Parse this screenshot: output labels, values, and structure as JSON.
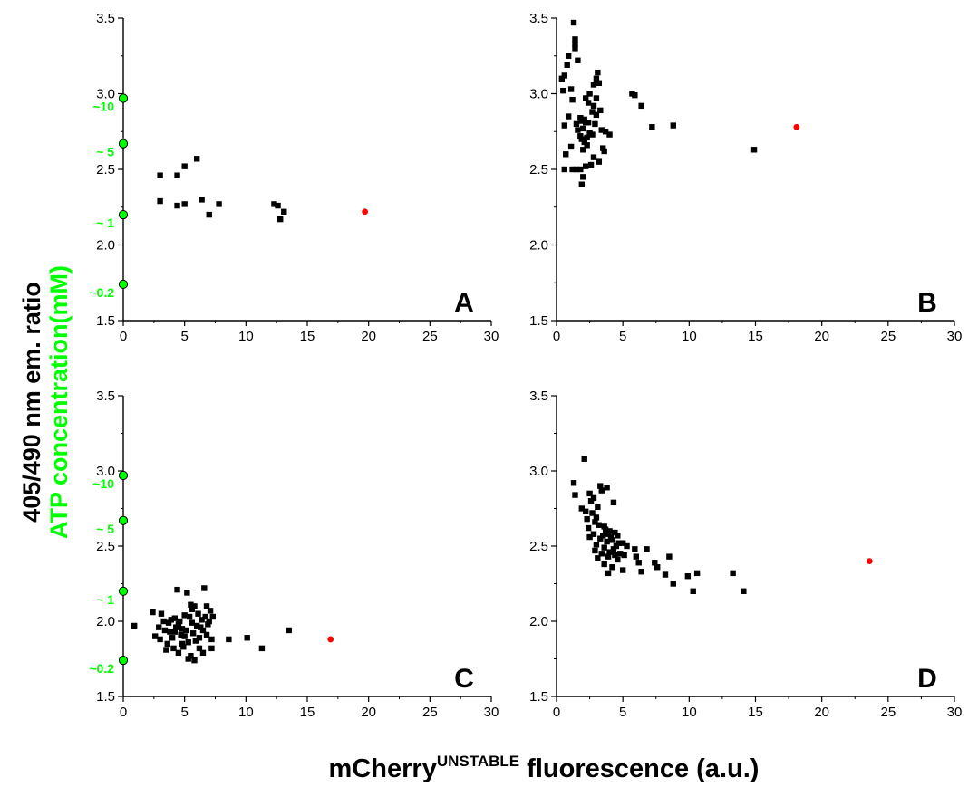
{
  "colors": {
    "points": "#000000",
    "highlight": "#ff0000",
    "atp": "#00ff00",
    "axis": "#000000"
  },
  "y_label_line1": "405/490 nm em. ratio",
  "y_label_line2": "ATP concentration(mM)",
  "x_label_main": "mCherry",
  "x_label_sup": "UNSTABLE",
  "x_label_tail": " fluorescence (a.u.)",
  "chart_data": [
    {
      "panel": "A",
      "type": "scatter",
      "xlim": [
        0,
        30
      ],
      "ylim": [
        1.5,
        3.5
      ],
      "xticks": [
        0,
        5,
        10,
        15,
        20,
        25,
        30
      ],
      "yticks": [
        1.5,
        2.0,
        2.5,
        3.0,
        3.5
      ],
      "atp_markers": [
        {
          "label": "~10",
          "y": 2.97
        },
        {
          "label": "~ 5",
          "y": 2.67
        },
        {
          "label": "~ 1",
          "y": 2.2
        },
        {
          "label": "~0.2",
          "y": 1.74
        }
      ],
      "points": [
        [
          3.0,
          2.46
        ],
        [
          3.0,
          2.29
        ],
        [
          4.4,
          2.46
        ],
        [
          4.4,
          2.26
        ],
        [
          5.0,
          2.52
        ],
        [
          5.0,
          2.27
        ],
        [
          6.0,
          2.57
        ],
        [
          6.4,
          2.3
        ],
        [
          7.0,
          2.2
        ],
        [
          7.8,
          2.27
        ],
        [
          12.3,
          2.27
        ],
        [
          12.6,
          2.26
        ],
        [
          13.1,
          2.22
        ],
        [
          12.8,
          2.17
        ]
      ],
      "highlight": [
        [
          19.7,
          2.22
        ]
      ]
    },
    {
      "panel": "B",
      "type": "scatter",
      "xlim": [
        0,
        30
      ],
      "ylim": [
        1.5,
        3.5
      ],
      "xticks": [
        0,
        5,
        10,
        15,
        20,
        25,
        30
      ],
      "yticks": [
        1.5,
        2.0,
        2.5,
        3.0,
        3.5
      ],
      "atp_markers": [],
      "points": [
        [
          1.3,
          3.47
        ],
        [
          1.4,
          3.36
        ],
        [
          1.4,
          3.33
        ],
        [
          1.4,
          3.3
        ],
        [
          0.9,
          3.25
        ],
        [
          1.6,
          3.22
        ],
        [
          0.8,
          3.19
        ],
        [
          0.6,
          3.12
        ],
        [
          0.4,
          3.1
        ],
        [
          1.1,
          3.03
        ],
        [
          0.5,
          3.02
        ],
        [
          3.1,
          3.14
        ],
        [
          3.0,
          3.1
        ],
        [
          2.8,
          3.06
        ],
        [
          3.2,
          3.07
        ],
        [
          1.2,
          2.96
        ],
        [
          2.5,
          3.0
        ],
        [
          2.2,
          2.97
        ],
        [
          3.0,
          2.97
        ],
        [
          2.4,
          2.94
        ],
        [
          2.8,
          2.92
        ],
        [
          3.3,
          2.89
        ],
        [
          2.7,
          2.88
        ],
        [
          3.0,
          2.86
        ],
        [
          0.9,
          2.85
        ],
        [
          1.8,
          2.84
        ],
        [
          2.1,
          2.83
        ],
        [
          1.9,
          2.82
        ],
        [
          2.2,
          2.81
        ],
        [
          2.4,
          2.81
        ],
        [
          1.5,
          2.8
        ],
        [
          2.9,
          2.8
        ],
        [
          0.6,
          2.79
        ],
        [
          2.0,
          2.77
        ],
        [
          1.6,
          2.76
        ],
        [
          3.4,
          2.76
        ],
        [
          3.7,
          2.75
        ],
        [
          2.5,
          2.74
        ],
        [
          4.0,
          2.73
        ],
        [
          2.7,
          2.73
        ],
        [
          1.8,
          2.72
        ],
        [
          2.3,
          2.71
        ],
        [
          1.9,
          2.7
        ],
        [
          2.1,
          2.68
        ],
        [
          2.3,
          2.66
        ],
        [
          1.1,
          2.65
        ],
        [
          3.5,
          2.64
        ],
        [
          2.0,
          2.63
        ],
        [
          3.6,
          2.62
        ],
        [
          0.7,
          2.6
        ],
        [
          2.8,
          2.58
        ],
        [
          3.2,
          2.55
        ],
        [
          2.6,
          2.53
        ],
        [
          2.2,
          2.52
        ],
        [
          0.6,
          2.5
        ],
        [
          1.2,
          2.5
        ],
        [
          1.5,
          2.5
        ],
        [
          1.8,
          2.5
        ],
        [
          2.0,
          2.45
        ],
        [
          1.9,
          2.4
        ],
        [
          5.7,
          3.0
        ],
        [
          5.9,
          2.99
        ],
        [
          6.4,
          2.92
        ],
        [
          7.2,
          2.78
        ],
        [
          8.8,
          2.79
        ],
        [
          14.9,
          2.63
        ]
      ],
      "highlight": [
        [
          18.1,
          2.78
        ]
      ]
    },
    {
      "panel": "C",
      "type": "scatter",
      "xlim": [
        0,
        30
      ],
      "ylim": [
        1.5,
        3.5
      ],
      "xticks": [
        0,
        5,
        10,
        15,
        20,
        25,
        30
      ],
      "yticks": [
        1.5,
        2.0,
        2.5,
        3.0,
        3.5
      ],
      "atp_markers": [
        {
          "label": "~10",
          "y": 2.97
        },
        {
          "label": "~ 5",
          "y": 2.67
        },
        {
          "label": "~ 1",
          "y": 2.2
        },
        {
          "label": "~0.2",
          "y": 1.74
        }
      ],
      "points": [
        [
          0.9,
          1.97
        ],
        [
          2.4,
          2.06
        ],
        [
          2.6,
          1.9
        ],
        [
          2.9,
          1.96
        ],
        [
          3.1,
          2.05
        ],
        [
          3.3,
          2.0
        ],
        [
          3.4,
          1.94
        ],
        [
          3.6,
          1.85
        ],
        [
          3.7,
          1.99
        ],
        [
          3.8,
          1.93
        ],
        [
          3.9,
          2.01
        ],
        [
          4.0,
          1.89
        ],
        [
          4.1,
          1.82
        ],
        [
          4.2,
          2.02
        ],
        [
          4.3,
          1.96
        ],
        [
          4.4,
          2.21
        ],
        [
          4.5,
          1.98
        ],
        [
          4.6,
          2.0
        ],
        [
          4.7,
          1.91
        ],
        [
          4.8,
          1.95
        ],
        [
          4.9,
          1.83
        ],
        [
          5.0,
          2.04
        ],
        [
          5.1,
          1.94
        ],
        [
          5.2,
          2.19
        ],
        [
          5.3,
          1.86
        ],
        [
          5.4,
          2.03
        ],
        [
          5.5,
          2.11
        ],
        [
          5.6,
          1.99
        ],
        [
          5.7,
          1.92
        ],
        [
          5.8,
          2.1
        ],
        [
          5.9,
          1.87
        ],
        [
          6.0,
          1.97
        ],
        [
          6.1,
          2.05
        ],
        [
          6.2,
          1.89
        ],
        [
          6.3,
          1.96
        ],
        [
          6.4,
          2.01
        ],
        [
          6.5,
          1.94
        ],
        [
          6.6,
          2.22
        ],
        [
          6.7,
          2.03
        ],
        [
          6.8,
          1.91
        ],
        [
          6.9,
          1.98
        ],
        [
          7.0,
          2.0
        ],
        [
          7.1,
          2.07
        ],
        [
          7.2,
          1.88
        ],
        [
          7.3,
          2.03
        ],
        [
          3.5,
          1.81
        ],
        [
          4.5,
          1.79
        ],
        [
          5.5,
          1.77
        ],
        [
          6.5,
          1.79
        ],
        [
          5.3,
          1.75
        ],
        [
          5.8,
          1.74
        ],
        [
          4.8,
          1.85
        ],
        [
          6.2,
          1.82
        ],
        [
          5.0,
          1.9
        ],
        [
          3.0,
          1.88
        ],
        [
          4.2,
          1.93
        ],
        [
          5.6,
          2.08
        ],
        [
          6.8,
          2.1
        ],
        [
          7.2,
          1.82
        ],
        [
          8.6,
          1.88
        ],
        [
          10.1,
          1.89
        ],
        [
          11.3,
          1.82
        ],
        [
          13.5,
          1.94
        ]
      ],
      "highlight": [
        [
          16.9,
          1.88
        ]
      ]
    },
    {
      "panel": "D",
      "type": "scatter",
      "xlim": [
        0,
        30
      ],
      "ylim": [
        1.5,
        3.5
      ],
      "xticks": [
        0,
        5,
        10,
        15,
        20,
        25,
        30
      ],
      "yticks": [
        1.5,
        2.0,
        2.5,
        3.0,
        3.5
      ],
      "atp_markers": [],
      "points": [
        [
          2.1,
          3.08
        ],
        [
          1.3,
          2.92
        ],
        [
          1.4,
          2.84
        ],
        [
          2.5,
          2.85
        ],
        [
          2.8,
          2.82
        ],
        [
          3.3,
          2.9
        ],
        [
          3.4,
          2.87
        ],
        [
          3.8,
          2.89
        ],
        [
          2.6,
          2.8
        ],
        [
          3.1,
          2.76
        ],
        [
          1.9,
          2.75
        ],
        [
          2.2,
          2.73
        ],
        [
          2.7,
          2.72
        ],
        [
          3.0,
          2.69
        ],
        [
          2.3,
          2.68
        ],
        [
          4.3,
          2.79
        ],
        [
          2.9,
          2.66
        ],
        [
          3.2,
          2.64
        ],
        [
          3.6,
          2.63
        ],
        [
          2.4,
          2.62
        ],
        [
          3.7,
          2.61
        ],
        [
          4.0,
          2.6
        ],
        [
          4.4,
          2.59
        ],
        [
          3.9,
          2.58
        ],
        [
          2.8,
          2.58
        ],
        [
          3.5,
          2.57
        ],
        [
          4.1,
          2.56
        ],
        [
          4.6,
          2.57
        ],
        [
          2.5,
          2.56
        ],
        [
          3.3,
          2.55
        ],
        [
          4.2,
          2.54
        ],
        [
          3.8,
          2.53
        ],
        [
          4.7,
          2.52
        ],
        [
          5.0,
          2.52
        ],
        [
          3.0,
          2.51
        ],
        [
          4.5,
          2.5
        ],
        [
          5.3,
          2.5
        ],
        [
          3.6,
          2.49
        ],
        [
          4.3,
          2.48
        ],
        [
          2.9,
          2.47
        ],
        [
          4.0,
          2.46
        ],
        [
          5.9,
          2.48
        ],
        [
          4.8,
          2.45
        ],
        [
          3.4,
          2.45
        ],
        [
          6.8,
          2.48
        ],
        [
          4.4,
          2.44
        ],
        [
          5.1,
          2.44
        ],
        [
          3.9,
          2.43
        ],
        [
          6.0,
          2.43
        ],
        [
          8.5,
          2.43
        ],
        [
          3.1,
          2.42
        ],
        [
          4.6,
          2.41
        ],
        [
          6.2,
          2.39
        ],
        [
          7.4,
          2.39
        ],
        [
          3.6,
          2.38
        ],
        [
          4.2,
          2.36
        ],
        [
          5.0,
          2.34
        ],
        [
          7.6,
          2.36
        ],
        [
          3.9,
          2.32
        ],
        [
          6.4,
          2.33
        ],
        [
          8.2,
          2.31
        ],
        [
          9.9,
          2.3
        ],
        [
          10.6,
          2.32
        ],
        [
          13.3,
          2.32
        ],
        [
          8.8,
          2.25
        ],
        [
          10.3,
          2.2
        ],
        [
          14.1,
          2.2
        ]
      ],
      "highlight": [
        [
          23.6,
          2.4
        ]
      ]
    }
  ]
}
